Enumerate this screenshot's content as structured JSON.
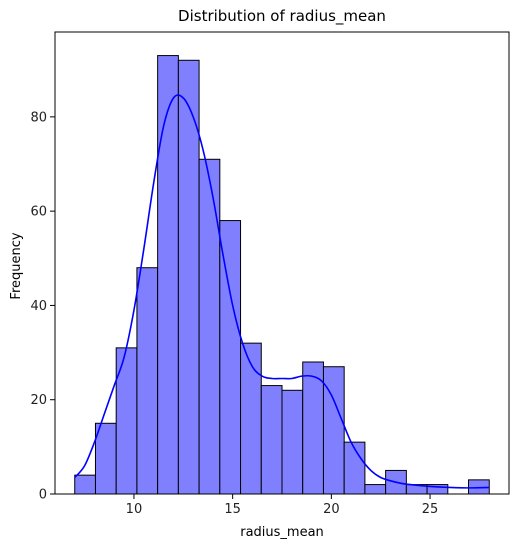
{
  "chart_data": {
    "type": "bar",
    "title": "Distribution of radius_mean",
    "xlabel": "radius_mean",
    "ylabel": "Frequency",
    "bin_edges": [
      7.0,
      8.05,
      9.1,
      10.15,
      11.2,
      12.25,
      13.3,
      14.35,
      15.4,
      16.45,
      17.5,
      18.55,
      19.6,
      20.65,
      21.7,
      22.75,
      23.8,
      24.85,
      25.9,
      26.95,
      28.0
    ],
    "values": [
      4,
      15,
      31,
      48,
      93,
      92,
      71,
      58,
      32,
      23,
      22,
      28,
      27,
      11,
      2,
      5,
      2,
      2,
      0,
      3
    ],
    "kde": {
      "name": "",
      "x": [
        7.0,
        7.5,
        8.0,
        8.5,
        9.0,
        9.5,
        10.0,
        10.5,
        11.0,
        11.5,
        12.0,
        12.5,
        13.0,
        13.5,
        14.0,
        14.5,
        15.0,
        15.5,
        16.0,
        16.5,
        17.0,
        17.5,
        18.0,
        18.5,
        19.0,
        19.5,
        20.0,
        20.5,
        21.0,
        21.5,
        22.0,
        22.5,
        23.0,
        23.5,
        24.0,
        25.0,
        26.0,
        27.0,
        28.0
      ],
      "y": [
        3.5,
        6,
        11,
        17,
        23,
        29,
        39,
        52,
        66,
        78,
        84,
        84,
        80,
        73,
        63,
        51,
        40,
        32,
        27,
        25,
        24.5,
        24.5,
        24.5,
        25,
        25,
        24,
        21,
        16,
        11,
        7.5,
        5,
        3.5,
        2.8,
        2.3,
        2,
        1.6,
        1.4,
        1.3,
        1.4
      ]
    },
    "xlim": [
      6.0,
      29.0
    ],
    "ylim": [
      0,
      98
    ],
    "x_ticks": [
      10,
      15,
      20,
      25
    ],
    "y_ticks": [
      0,
      20,
      40,
      60,
      80
    ],
    "grid": false,
    "colors": {
      "bar_fill": "#8080ff",
      "bar_edge": "#000000",
      "kde_line": "#0000ff"
    }
  }
}
